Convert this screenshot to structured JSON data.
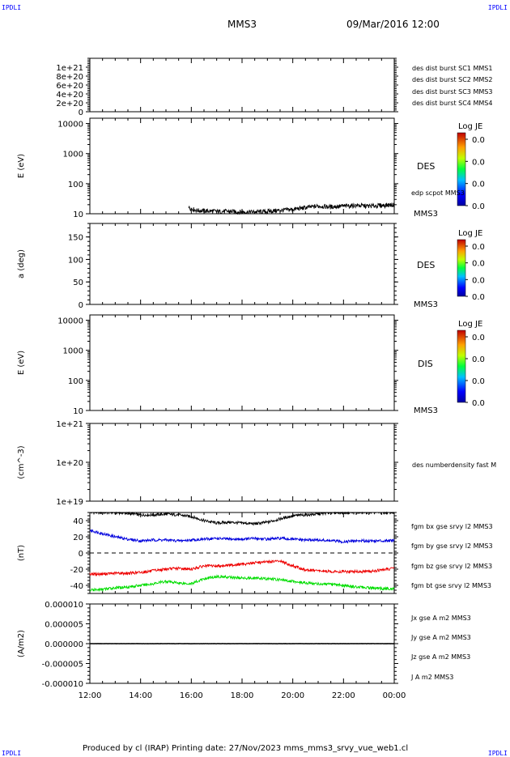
{
  "header": {
    "corner_tl": "IPDLI",
    "corner_tr": "IPDLI",
    "corner_bl": "IPDLI",
    "corner_br": "IPDLI",
    "spacecraft": "MMS3",
    "datetime": "09/Mar/2016 12:00"
  },
  "footer": {
    "text": "Produced by cl (IRAP)   Printing date: 27/Nov/2023   mms_mms3_srvy_vue_web1.cl"
  },
  "colors": {
    "black": "#000000",
    "blue": "#0000dd",
    "magenta": "#dd00dd",
    "red": "#ee0000",
    "green": "#00dd00"
  },
  "panels": {
    "p1": {
      "legend": [
        {
          "text": "des dist burst SC1 MMS1",
          "color": "#0000dd"
        },
        {
          "text": "des dist burst SC2 MMS2",
          "color": "#dd00dd"
        },
        {
          "text": "des dist burst SC3 MMS3",
          "color": "#ee0000"
        },
        {
          "text": "des dist burst SC4 MMS4",
          "color": "#00dd00"
        }
      ]
    },
    "p2": {
      "ylabel": "E (eV)",
      "instrument": "DES",
      "sc": "MMS3",
      "overlay_label": "edp scpot MMS3",
      "colorbar": {
        "title": "Log JE",
        "ticks": [
          "0.0",
          "0.0",
          "0.0",
          "0.0"
        ]
      }
    },
    "p3": {
      "ylabel": "a (deg)",
      "instrument": "DES",
      "sc": "MMS3",
      "colorbar": {
        "title": "Log JE",
        "ticks": [
          "0.0",
          "0.0",
          "0.0",
          "0.0"
        ]
      }
    },
    "p4": {
      "ylabel": "E (eV)",
      "instrument": "DIS",
      "sc": "MMS3",
      "colorbar": {
        "title": "Log JE",
        "ticks": [
          "0.0",
          "0.0",
          "0.0",
          "0.0"
        ]
      }
    },
    "p5": {
      "ylabel": "(cm^-3)",
      "legend": [
        {
          "text": "des numberdensity fast M",
          "color": "#000000"
        }
      ]
    },
    "p6": {
      "ylabel": "(nT)",
      "legend": [
        {
          "text": "fgm bx gse srvy l2 MMS3",
          "color": "#ee0000"
        },
        {
          "text": "fgm by gse srvy l2 MMS3",
          "color": "#00dd00"
        },
        {
          "text": "fgm bz gse srvy l2 MMS3",
          "color": "#0000dd"
        },
        {
          "text": "fgm bt gse srvy l2 MMS3",
          "color": "#000000"
        }
      ]
    },
    "p7": {
      "ylabel": "(A/m2)",
      "legend": [
        {
          "text": "Jx gse A m2 MMS3",
          "color": "#ee0000"
        },
        {
          "text": "Jy gse A m2 MMS3",
          "color": "#00dd00"
        },
        {
          "text": "Jz gse A m2 MMS3",
          "color": "#0000dd"
        },
        {
          "text": "J A m2 MMS3",
          "color": "#000000"
        }
      ]
    }
  },
  "chart_data": [
    {
      "type": "line",
      "panel": "p1",
      "ylim": [
        0,
        1.2e+21
      ],
      "yticklabels": [
        "1e+21",
        "8e+20",
        "6e+20",
        "4e+20",
        "2e+20",
        "0"
      ],
      "yticks": [
        1e+21,
        8e+20,
        6e+20,
        4e+20,
        2e+20,
        0
      ],
      "dashed_zero": true,
      "series": []
    },
    {
      "type": "line",
      "panel": "p2",
      "yscale": "log",
      "ylim": [
        10,
        15000
      ],
      "yticklabels": [
        "10000",
        "1000",
        "100",
        "10"
      ],
      "yticks": [
        10000,
        1000,
        100,
        10
      ],
      "series": [
        {
          "name": "edp scpot MMS3",
          "color": "#000000",
          "x": [
            15.9,
            16.2,
            16.6,
            17.0,
            17.5,
            18.0,
            18.5,
            19.0,
            19.5,
            20.0,
            20.5,
            21.0,
            21.5,
            22.0,
            22.5,
            23.0,
            23.5,
            24.0
          ],
          "y": [
            16,
            13,
            12.5,
            12,
            12,
            11.5,
            11.5,
            12,
            13,
            14,
            16,
            18,
            17,
            18,
            19,
            18,
            19,
            20
          ]
        }
      ]
    },
    {
      "type": "heatmap",
      "panel": "p3",
      "ylim": [
        0,
        180
      ],
      "yticklabels": [
        "150",
        "100",
        "50",
        "0"
      ],
      "yticks": [
        150,
        100,
        50,
        0
      ],
      "series": []
    },
    {
      "type": "heatmap",
      "panel": "p4",
      "yscale": "log",
      "ylim": [
        10,
        15000
      ],
      "yticklabels": [
        "10000",
        "1000",
        "100",
        "10"
      ],
      "yticks": [
        10000,
        1000,
        100,
        10
      ],
      "series": []
    },
    {
      "type": "line",
      "panel": "p5",
      "yscale": "log",
      "ylim": [
        1e+19,
        1e+21
      ],
      "yticklabels": [
        "1e+21",
        "1e+20",
        "1e+19"
      ],
      "yticks": [
        1e+21,
        1e+20,
        1e+19
      ],
      "series": []
    },
    {
      "type": "line",
      "panel": "p6",
      "ylim": [
        -50,
        50
      ],
      "yticklabels": [
        "40",
        "20",
        "0",
        "-20",
        "-40"
      ],
      "yticks": [
        40,
        20,
        0,
        -20,
        -40
      ],
      "dashed_zero": true,
      "series": [
        {
          "name": "fgm bt gse srvy l2 MMS3",
          "color": "#000000",
          "x": [
            12,
            12.5,
            13,
            13.5,
            14,
            14.5,
            15,
            15.5,
            16,
            16.5,
            17,
            17.5,
            18,
            18.5,
            19,
            19.5,
            20,
            20.5,
            21,
            21.5,
            22,
            22.5,
            23,
            23.5,
            24
          ],
          "y": [
            50,
            50,
            50,
            49,
            47,
            47,
            48,
            47,
            45,
            40,
            37,
            38,
            37,
            36,
            38,
            42,
            46,
            47,
            48,
            50,
            50,
            50,
            50,
            50,
            50
          ]
        },
        {
          "name": "fgm bz gse srvy l2 MMS3",
          "color": "#0000dd",
          "x": [
            12,
            12.5,
            13,
            13.5,
            14,
            14.5,
            15,
            15.5,
            16,
            16.5,
            17,
            17.5,
            18,
            18.5,
            19,
            19.5,
            20,
            20.5,
            21,
            21.5,
            22,
            22.5,
            23,
            23.5,
            24
          ],
          "y": [
            28,
            24,
            20,
            17,
            15,
            16,
            16,
            15,
            16,
            17,
            18,
            17,
            17,
            18,
            17,
            18,
            17,
            16,
            16,
            15,
            14,
            15,
            15,
            15,
            16
          ]
        },
        {
          "name": "fgm bx gse srvy l2 MMS3",
          "color": "#ee0000",
          "x": [
            12,
            12.5,
            13,
            13.5,
            14,
            14.5,
            15,
            15.5,
            16,
            16.5,
            17,
            17.5,
            18,
            18.5,
            19,
            19.5,
            20,
            20.5,
            21,
            21.5,
            22,
            22.5,
            23,
            23.5,
            24
          ],
          "y": [
            -26,
            -26,
            -25,
            -25,
            -24,
            -22,
            -20,
            -19,
            -20,
            -16,
            -16,
            -15,
            -14,
            -12,
            -11,
            -10,
            -16,
            -21,
            -22,
            -23,
            -23,
            -23,
            -23,
            -21,
            -19
          ]
        },
        {
          "name": "fgm by gse srvy l2 MMS3",
          "color": "#00dd00",
          "x": [
            12,
            12.5,
            13,
            13.5,
            14,
            14.5,
            15,
            15.5,
            16,
            16.5,
            17,
            17.5,
            18,
            18.5,
            19,
            19.5,
            20,
            20.5,
            21,
            21.5,
            22,
            22.5,
            23,
            23.5,
            24
          ],
          "y": [
            -46,
            -45,
            -43,
            -42,
            -40,
            -38,
            -35,
            -37,
            -38,
            -32,
            -29,
            -30,
            -31,
            -31,
            -32,
            -33,
            -35,
            -37,
            -38,
            -39,
            -40,
            -42,
            -43,
            -44,
            -44
          ]
        }
      ]
    },
    {
      "type": "line",
      "panel": "p7",
      "ylim": [
        -1e-05,
        1e-05
      ],
      "yticklabels": [
        "0.000010",
        "0.000005",
        "0.000000",
        "-0.000005",
        "-0.000010"
      ],
      "yticks": [
        1e-05,
        5e-06,
        0,
        -5e-06,
        -1e-05
      ],
      "xticklabels": [
        "12:00",
        "14:00",
        "16:00",
        "18:00",
        "20:00",
        "22:00",
        "00:00"
      ],
      "xticks": [
        12,
        14,
        16,
        18,
        20,
        22,
        24
      ],
      "series": [
        {
          "name": "J A m2 MMS3",
          "color": "#000000",
          "x": [
            12,
            24
          ],
          "y": [
            0,
            0
          ]
        }
      ]
    }
  ]
}
